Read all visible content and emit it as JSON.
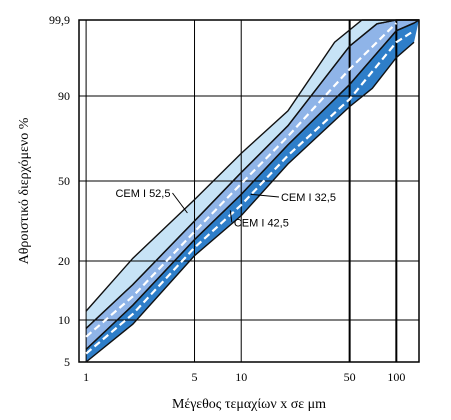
{
  "chart_data": {
    "type": "area",
    "title": "",
    "xlabel": "Μέγεθος τεμαχίων x σε μm",
    "ylabel": "Αθροιστικό διερχόμενο %",
    "x_scale": "log",
    "y_scale": "probability",
    "xlim": [
      0.9,
      140
    ],
    "ylim": [
      5,
      99.9
    ],
    "x_ticks": [
      1,
      5,
      10,
      50,
      100
    ],
    "x_tick_labels": [
      "1",
      "5",
      "10",
      "50",
      "100"
    ],
    "y_ticks": [
      5,
      10,
      20,
      50,
      90,
      99.9
    ],
    "y_tick_labels": [
      "5",
      "10",
      "20",
      "50",
      "90",
      "99,9"
    ],
    "grid": true,
    "bands": [
      {
        "name": "CEM I 52,5",
        "color": "#c7e3f6",
        "upper": [
          [
            1,
            11.5
          ],
          [
            2,
            21
          ],
          [
            5,
            43
          ],
          [
            10,
            63
          ],
          [
            20,
            83
          ],
          [
            40,
            97
          ],
          [
            60,
            99.9
          ]
        ],
        "lower": [
          [
            1,
            9
          ],
          [
            2,
            16
          ],
          [
            5,
            35
          ],
          [
            10,
            54
          ],
          [
            20,
            76
          ],
          [
            50,
            96.5
          ],
          [
            75,
            99.4
          ],
          [
            100,
            99.9
          ]
        ]
      },
      {
        "name": "CEM I 42,5",
        "color": "#8fb4e8",
        "upper": [
          [
            1,
            9
          ],
          [
            2,
            16
          ],
          [
            5,
            35
          ],
          [
            10,
            54
          ],
          [
            20,
            76
          ],
          [
            50,
            96.5
          ],
          [
            75,
            99.4
          ],
          [
            100,
            99.9
          ]
        ],
        "lower": [
          [
            1,
            6.5
          ],
          [
            2,
            12.5
          ],
          [
            5,
            28
          ],
          [
            10,
            45
          ],
          [
            20,
            67
          ],
          [
            50,
            91.5
          ],
          [
            100,
            98.5
          ],
          [
            130,
            99.5
          ]
        ]
      },
      {
        "name": "CEM I 32,5",
        "color": "#2e7ec9",
        "upper": [
          [
            1,
            6.5
          ],
          [
            2,
            12.5
          ],
          [
            5,
            28
          ],
          [
            10,
            45
          ],
          [
            20,
            67
          ],
          [
            50,
            91.5
          ],
          [
            100,
            98.5
          ],
          [
            130,
            99.5
          ]
        ],
        "lower": [
          [
            1,
            5
          ],
          [
            2,
            9.5
          ],
          [
            5,
            22
          ],
          [
            10,
            37
          ],
          [
            20,
            58
          ],
          [
            50,
            85
          ],
          [
            70,
            91
          ],
          [
            100,
            95
          ],
          [
            130,
            97
          ]
        ]
      }
    ],
    "dashed_lines": [
      [
        [
          1,
          8
        ],
        [
          2,
          14
        ],
        [
          5,
          31
        ],
        [
          10,
          49
        ],
        [
          20,
          71
        ],
        [
          50,
          93.5
        ],
        [
          100,
          99.5
        ]
      ],
      [
        [
          1,
          6
        ],
        [
          2,
          11
        ],
        [
          5,
          25
        ],
        [
          10,
          41
        ],
        [
          20,
          62
        ],
        [
          50,
          88.5
        ],
        [
          100,
          97
        ],
        [
          130,
          98.5
        ]
      ]
    ],
    "labels": [
      {
        "text": "CEM I 52,5",
        "x": 3.5,
        "y": 44
      },
      {
        "text": "CEM I 32,5",
        "x": 17,
        "y": 42.5
      },
      {
        "text": "CEM I 42,5",
        "x": 7.5,
        "y": 33
      }
    ]
  }
}
